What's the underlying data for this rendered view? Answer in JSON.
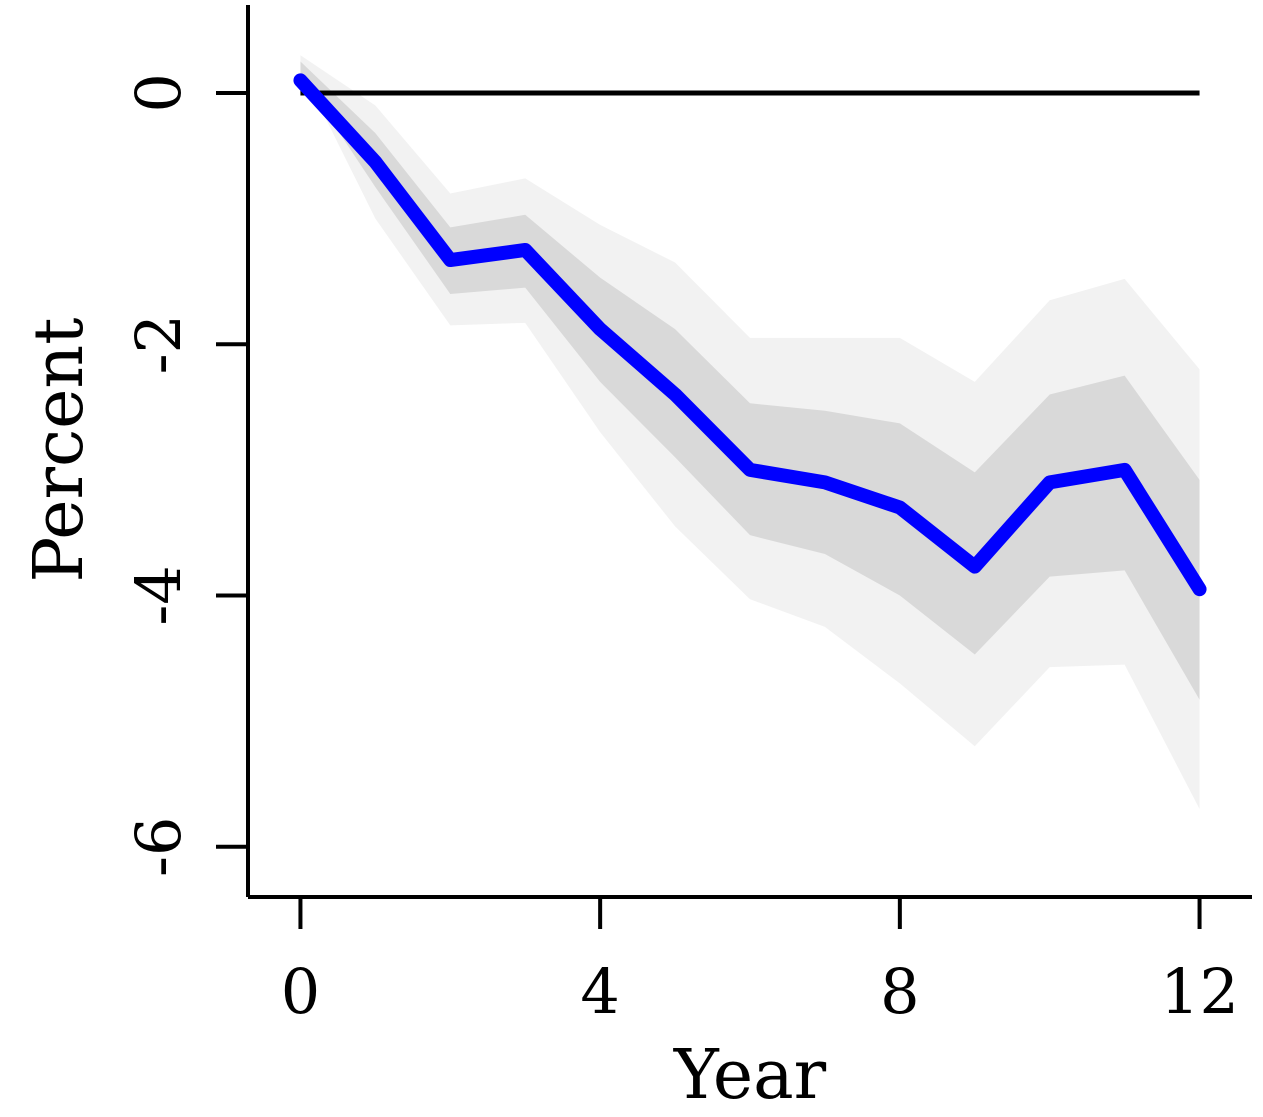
{
  "chart_data": {
    "type": "line",
    "title": "",
    "xlabel": "Year",
    "ylabel": "Percent",
    "x": [
      0,
      1,
      2,
      3,
      4,
      5,
      6,
      7,
      8,
      9,
      10,
      11,
      12
    ],
    "series": [
      {
        "values": [
          0.1,
          -0.55,
          -1.33,
          -1.25,
          -1.88,
          -2.4,
          -3.0,
          -3.1,
          -3.3,
          -3.77,
          -3.1,
          -3.0,
          -3.95
        ]
      }
    ],
    "bands": [
      {
        "level": "outer",
        "lower": [
          0.2,
          -1.0,
          -1.85,
          -1.83,
          -2.7,
          -3.45,
          -4.03,
          -4.25,
          -4.7,
          -5.2,
          -4.57,
          -4.55,
          -5.7
        ],
        "upper": [
          0.3,
          -0.1,
          -0.8,
          -0.68,
          -1.05,
          -1.35,
          -1.95,
          -1.95,
          -1.95,
          -2.3,
          -1.65,
          -1.48,
          -2.2
        ]
      },
      {
        "level": "inner",
        "lower": [
          0.15,
          -0.75,
          -1.6,
          -1.55,
          -2.3,
          -2.9,
          -3.52,
          -3.67,
          -4.0,
          -4.47,
          -3.85,
          -3.8,
          -4.83
        ],
        "upper": [
          0.25,
          -0.32,
          -1.07,
          -0.97,
          -1.47,
          -1.88,
          -2.47,
          -2.53,
          -2.63,
          -3.02,
          -2.4,
          -2.25,
          -3.08
        ]
      }
    ],
    "reference_line": {
      "y": 0,
      "color": "#000000"
    },
    "xlim": [
      -0.7,
      12.7
    ],
    "ylim": [
      -6.4,
      0.7
    ],
    "x_ticks": [
      0,
      4,
      8,
      12
    ],
    "x_tick_labels": [
      "0",
      "4",
      "8",
      "12"
    ],
    "y_ticks": [
      0,
      -2,
      -4,
      -6
    ],
    "y_tick_labels": [
      "0",
      "-2",
      "-4",
      "-6"
    ],
    "grid": false,
    "colors": {
      "line": "#0000ff",
      "outer_band": "#f2f2f2",
      "inner_band": "#d9d9d9",
      "axis": "#000000"
    }
  }
}
